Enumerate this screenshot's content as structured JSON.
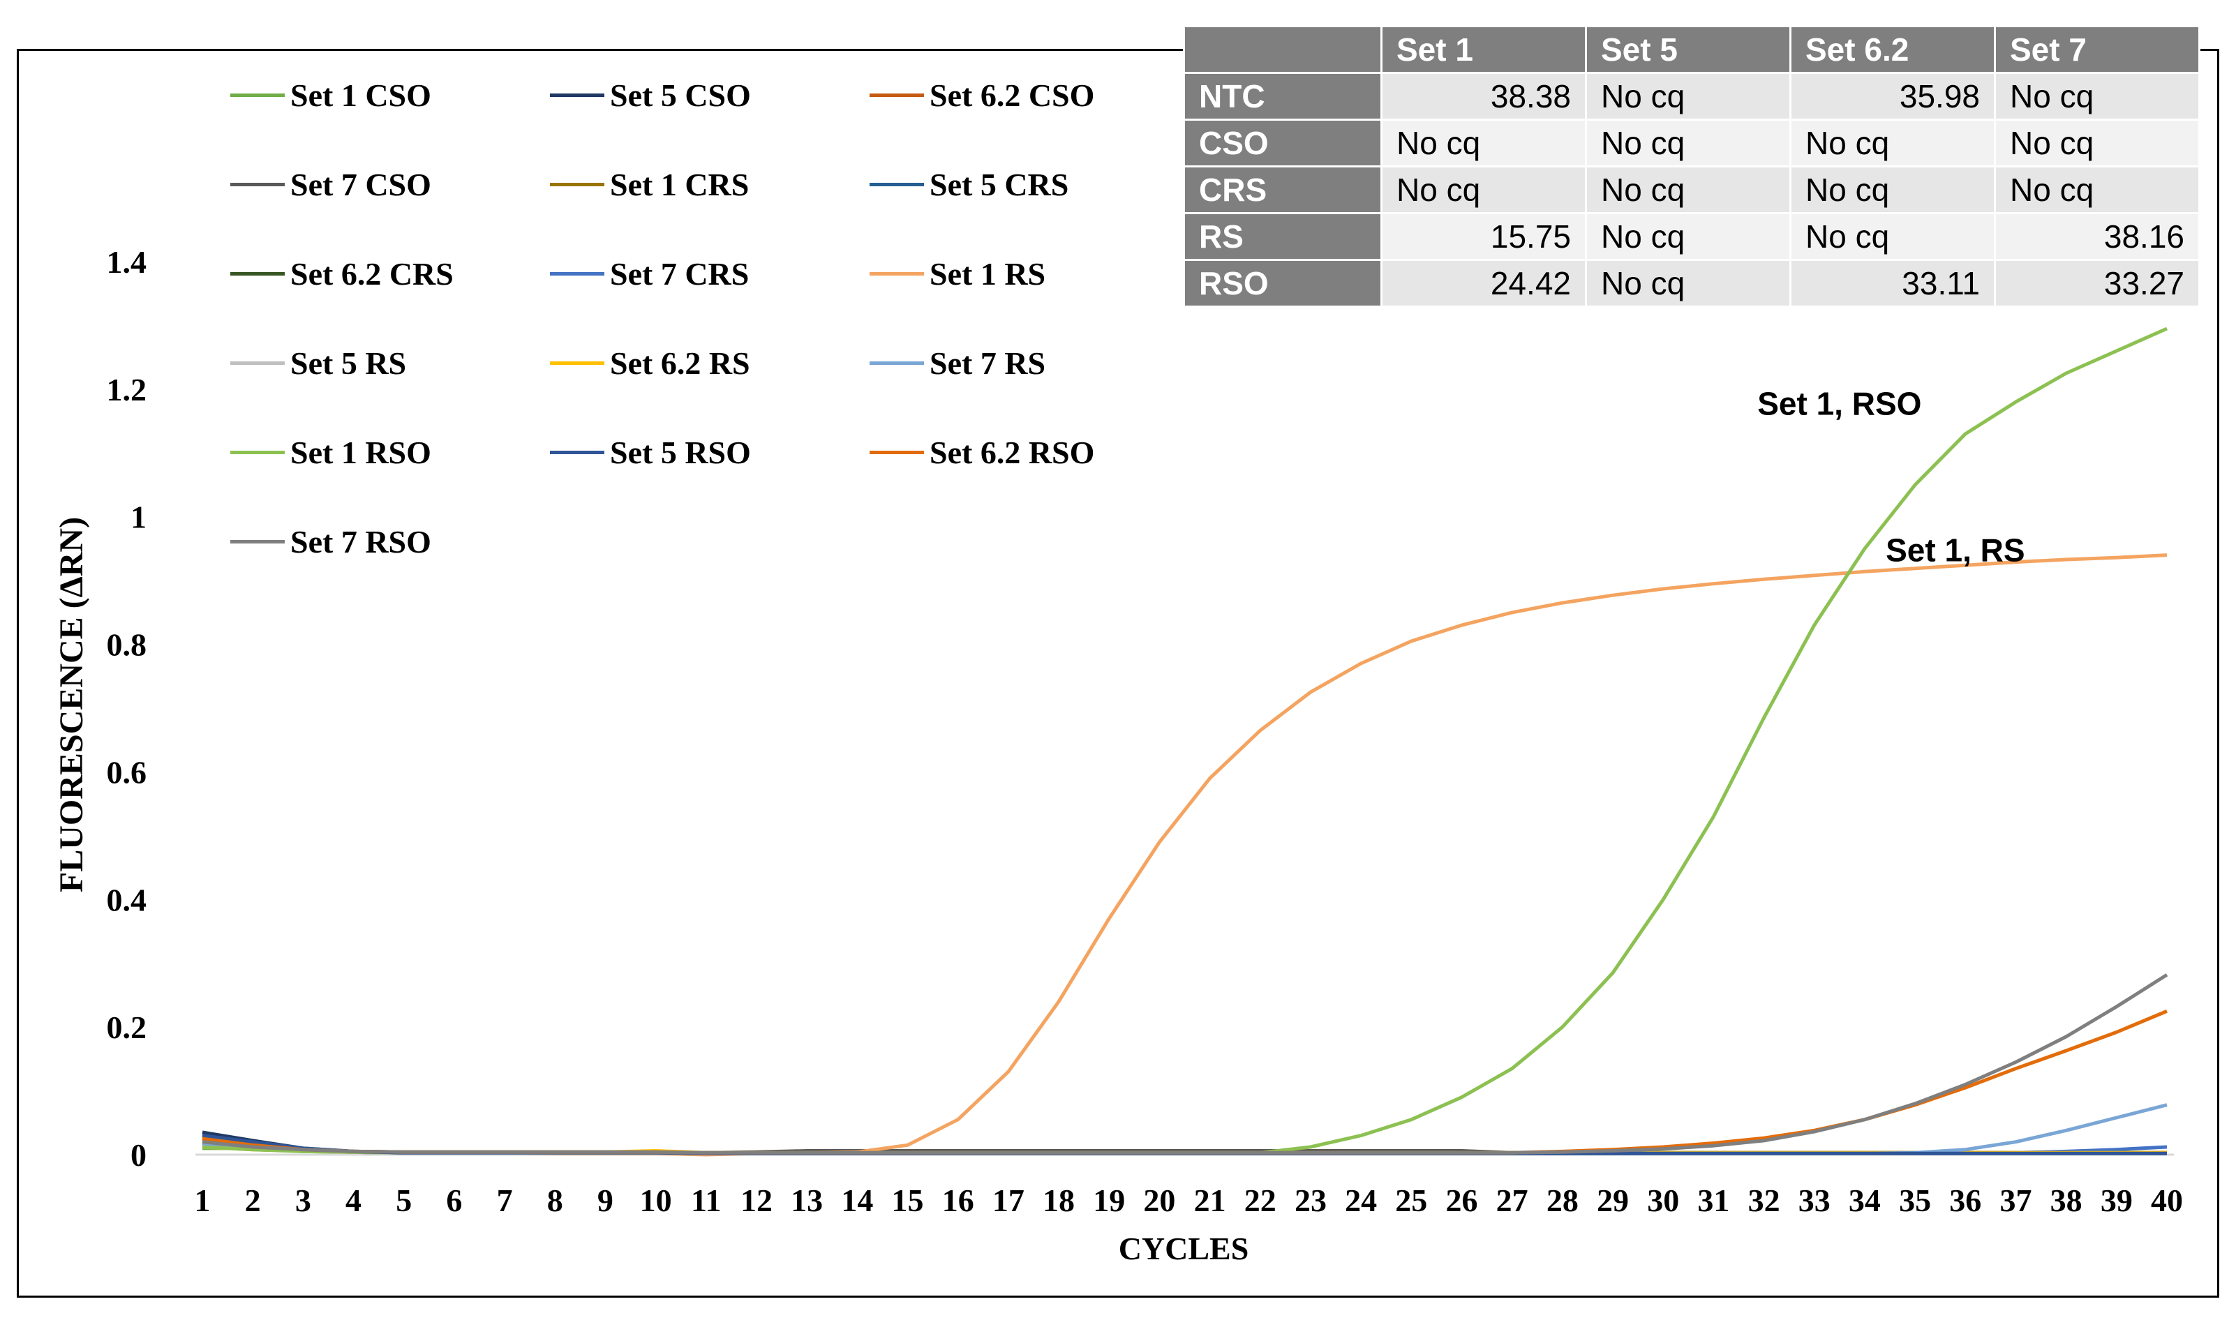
{
  "chart_data": {
    "type": "line",
    "xlabel": "CYCLES",
    "ylabel": "FLUORESCENCE (ΔRN)",
    "ylim": [
      0,
      1.4
    ],
    "yticks": [
      0,
      0.2,
      0.4,
      0.6,
      0.8,
      1,
      1.2,
      1.4
    ],
    "ytick_labels": [
      "0",
      "0.2",
      "0.4",
      "0.6",
      "0.8",
      "1",
      "1.2",
      "1.4"
    ],
    "x": [
      1,
      2,
      3,
      4,
      5,
      6,
      7,
      8,
      9,
      10,
      11,
      12,
      13,
      14,
      15,
      16,
      17,
      18,
      19,
      20,
      21,
      22,
      23,
      24,
      25,
      26,
      27,
      28,
      29,
      30,
      31,
      32,
      33,
      34,
      35,
      36,
      37,
      38,
      39,
      40
    ],
    "legend_position": "top-left",
    "series": [
      {
        "name": "Set 1 CSO",
        "color": "#70ad47",
        "values": [
          0.01,
          0.01,
          0.005,
          0.004,
          0.003,
          0.003,
          0.003,
          0.003,
          0.003,
          0.003,
          0.003,
          0.003,
          0.003,
          0.003,
          0.003,
          0.003,
          0.003,
          0.003,
          0.003,
          0.003,
          0.003,
          0.003,
          0.003,
          0.003,
          0.003,
          0.003,
          0.003,
          0.003,
          0.003,
          0.003,
          0.003,
          0.003,
          0.003,
          0.003,
          0.003,
          0.003,
          0.003,
          0.003,
          0.003,
          0.003
        ]
      },
      {
        "name": "Set 5 CSO",
        "color": "#203864",
        "values": [
          0.035,
          0.022,
          0.01,
          0.005,
          0.003,
          0.003,
          0.003,
          0.003,
          0.003,
          0.003,
          0.002,
          0.002,
          0.002,
          0.002,
          0.002,
          0.002,
          0.002,
          0.002,
          0.002,
          0.002,
          0.002,
          0.002,
          0.002,
          0.002,
          0.002,
          0.002,
          0.002,
          0.002,
          0.002,
          0.002,
          0.002,
          0.002,
          0.002,
          0.002,
          0.002,
          0.002,
          0.002,
          0.002,
          0.002,
          0.002
        ]
      },
      {
        "name": "Set 6.2 CSO",
        "color": "#c55a11",
        "values": [
          0.025,
          0.015,
          0.008,
          0.005,
          0.004,
          0.004,
          0.004,
          0.004,
          0.004,
          0.004,
          0.003,
          0.003,
          0.003,
          0.003,
          0.003,
          0.003,
          0.003,
          0.003,
          0.003,
          0.003,
          0.003,
          0.003,
          0.003,
          0.003,
          0.003,
          0.003,
          0.003,
          0.003,
          0.003,
          0.003,
          0.003,
          0.003,
          0.003,
          0.003,
          0.003,
          0.003,
          0.003,
          0.003,
          0.003,
          0.003
        ]
      },
      {
        "name": "Set 7 CSO",
        "color": "#595959",
        "values": [
          0.02,
          0.012,
          0.008,
          0.005,
          0.004,
          0.004,
          0.004,
          0.004,
          0.004,
          0.004,
          0.003,
          0.004,
          0.006,
          0.006,
          0.006,
          0.006,
          0.006,
          0.006,
          0.006,
          0.006,
          0.006,
          0.006,
          0.006,
          0.006,
          0.006,
          0.006,
          0.003,
          0.003,
          0.003,
          0.003,
          0.003,
          0.003,
          0.003,
          0.003,
          0.003,
          0.003,
          0.003,
          0.003,
          0.003,
          0.003
        ]
      },
      {
        "name": "Set 1 CRS",
        "color": "#997300",
        "values": [
          0.02,
          0.012,
          0.006,
          0.004,
          0.003,
          0.003,
          0.003,
          0.003,
          0.003,
          0.003,
          0.003,
          0.003,
          0.003,
          0.003,
          0.003,
          0.003,
          0.003,
          0.003,
          0.003,
          0.003,
          0.003,
          0.003,
          0.003,
          0.003,
          0.003,
          0.003,
          0.003,
          0.003,
          0.003,
          0.003,
          0.003,
          0.003,
          0.003,
          0.003,
          0.003,
          0.003,
          0.003,
          0.003,
          0.003,
          0.003
        ]
      },
      {
        "name": "Set 5 CRS",
        "color": "#255e91",
        "values": [
          0.03,
          0.018,
          0.009,
          0.005,
          0.003,
          0.003,
          0.003,
          0.003,
          0.003,
          0.003,
          0.002,
          0.002,
          0.002,
          0.002,
          0.002,
          0.002,
          0.002,
          0.002,
          0.002,
          0.002,
          0.002,
          0.002,
          0.002,
          0.002,
          0.002,
          0.002,
          0.002,
          0.002,
          0.002,
          0.002,
          0.002,
          0.002,
          0.002,
          0.002,
          0.002,
          0.002,
          0.002,
          0.002,
          0.002,
          0.002
        ]
      },
      {
        "name": "Set 6.2 CRS",
        "color": "#375623",
        "values": [
          0.015,
          0.01,
          0.006,
          0.004,
          0.003,
          0.003,
          0.003,
          0.003,
          0.003,
          0.003,
          0.003,
          0.003,
          0.003,
          0.003,
          0.003,
          0.003,
          0.003,
          0.003,
          0.003,
          0.003,
          0.003,
          0.003,
          0.003,
          0.003,
          0.003,
          0.003,
          0.003,
          0.003,
          0.003,
          0.003,
          0.003,
          0.003,
          0.003,
          0.003,
          0.003,
          0.003,
          0.003,
          0.003,
          0.003,
          0.003
        ]
      },
      {
        "name": "Set 7 CRS",
        "color": "#4472c4",
        "values": [
          0.018,
          0.011,
          0.006,
          0.004,
          0.003,
          0.003,
          0.003,
          0.003,
          0.003,
          0.003,
          0.002,
          0.002,
          0.002,
          0.002,
          0.002,
          0.002,
          0.002,
          0.002,
          0.002,
          0.002,
          0.002,
          0.002,
          0.002,
          0.002,
          0.002,
          0.002,
          0.002,
          0.002,
          0.002,
          0.002,
          0.002,
          0.002,
          0.002,
          0.002,
          0.002,
          0.002,
          0.003,
          0.005,
          0.008,
          0.012
        ]
      },
      {
        "name": "Set 1 RS",
        "color": "#f4a460",
        "values": [
          0.02,
          0.012,
          0.006,
          0.004,
          0.003,
          0.003,
          0.003,
          0.002,
          0.002,
          0.002,
          0,
          0.002,
          0.003,
          0.004,
          0.015,
          0.055,
          0.13,
          0.24,
          0.37,
          0.49,
          0.59,
          0.665,
          0.725,
          0.77,
          0.805,
          0.83,
          0.85,
          0.865,
          0.877,
          0.887,
          0.895,
          0.902,
          0.908,
          0.914,
          0.919,
          0.924,
          0.929,
          0.933,
          0.936,
          0.94
        ]
      },
      {
        "name": "Set 5 RS",
        "color": "#bfbfbf",
        "values": [
          0.015,
          0.01,
          0.006,
          0.004,
          0.003,
          0.003,
          0.003,
          0.003,
          0.003,
          0.003,
          0.002,
          0.002,
          0.002,
          0.002,
          0.002,
          0.002,
          0.002,
          0.002,
          0.002,
          0.002,
          0.002,
          0.002,
          0.002,
          0.002,
          0.002,
          0.002,
          0.002,
          0.002,
          0.002,
          0.002,
          0.002,
          0.002,
          0.002,
          0.002,
          0.002,
          0.002,
          0.002,
          0.002,
          0.002,
          0.002
        ]
      },
      {
        "name": "Set 6.2 RS",
        "color": "#ffc000",
        "values": [
          0.012,
          0.008,
          0.006,
          0.004,
          0.004,
          0.004,
          0.004,
          0.004,
          0.004,
          0.006,
          0.003,
          0.003,
          0.003,
          0.003,
          0.003,
          0.003,
          0.003,
          0.003,
          0.003,
          0.003,
          0.003,
          0.003,
          0.003,
          0.003,
          0.003,
          0.003,
          0.003,
          0.003,
          0.003,
          0.003,
          0.003,
          0.003,
          0.003,
          0.003,
          0.003,
          0.003,
          0.003,
          0.003,
          0.003,
          0.003
        ]
      },
      {
        "name": "Set 7 RS",
        "color": "#7aa6d6",
        "values": [
          0.015,
          0.01,
          0.006,
          0.004,
          0.003,
          0.003,
          0.003,
          0.003,
          0.003,
          0.003,
          0.002,
          0.002,
          0.002,
          0.002,
          0.002,
          0.002,
          0.002,
          0.002,
          0.002,
          0.002,
          0.002,
          0.002,
          0.002,
          0.002,
          0.002,
          0.002,
          0.002,
          0.002,
          0.002,
          0.002,
          0.002,
          0.002,
          0.002,
          0.002,
          0.003,
          0.008,
          0.02,
          0.038,
          0.058,
          0.078
        ]
      },
      {
        "name": "Set 1 RSO",
        "color": "#8cc152",
        "values": [
          0.012,
          0.008,
          0.005,
          0.004,
          0.003,
          0.003,
          0.003,
          0.003,
          0.003,
          0.003,
          0.003,
          0.003,
          0.003,
          0.003,
          0.003,
          0.003,
          0.003,
          0.003,
          0.003,
          0.003,
          0.003,
          0.003,
          0.012,
          0.03,
          0.055,
          0.09,
          0.135,
          0.2,
          0.285,
          0.4,
          0.53,
          0.685,
          0.83,
          0.95,
          1.05,
          1.13,
          1.18,
          1.225,
          1.26,
          1.295
        ]
      },
      {
        "name": "Set 5 RSO",
        "color": "#2f5597",
        "values": [
          0.03,
          0.02,
          0.01,
          0.005,
          0.003,
          0.003,
          0.003,
          0.003,
          0.003,
          0.003,
          0.002,
          0.002,
          0.002,
          0.002,
          0.002,
          0.002,
          0.002,
          0.002,
          0.002,
          0.002,
          0.002,
          0.002,
          0.002,
          0.002,
          0.002,
          0.002,
          0.002,
          0.002,
          0.002,
          0.002,
          0.002,
          0.002,
          0.002,
          0.002,
          0.002,
          0.002,
          0.002,
          0.002,
          0.002,
          0.002
        ]
      },
      {
        "name": "Set 6.2 RSO",
        "color": "#e36c0a",
        "values": [
          0.025,
          0.015,
          0.008,
          0.005,
          0.004,
          0.004,
          0.004,
          0.004,
          0.004,
          0.004,
          0.003,
          0.003,
          0.003,
          0.003,
          0.003,
          0.003,
          0.003,
          0.003,
          0.003,
          0.003,
          0.003,
          0.003,
          0.003,
          0.003,
          0.003,
          0.003,
          0.003,
          0.005,
          0.008,
          0.012,
          0.018,
          0.026,
          0.038,
          0.055,
          0.078,
          0.105,
          0.135,
          0.163,
          0.192,
          0.225
        ]
      },
      {
        "name": "Set 7 RSO",
        "color": "#7f7f7f",
        "values": [
          0.02,
          0.012,
          0.008,
          0.005,
          0.004,
          0.004,
          0.004,
          0.004,
          0.004,
          0.004,
          0.003,
          0.003,
          0.003,
          0.003,
          0.003,
          0.003,
          0.003,
          0.003,
          0.003,
          0.003,
          0.003,
          0.003,
          0.003,
          0.003,
          0.003,
          0.003,
          0.003,
          0.004,
          0.006,
          0.009,
          0.014,
          0.022,
          0.036,
          0.055,
          0.08,
          0.11,
          0.145,
          0.185,
          0.232,
          0.282
        ]
      }
    ],
    "annotations": [
      {
        "text": "Set 1, RSO",
        "x": 33.5,
        "y": 1.16
      },
      {
        "text": "Set 1, RS",
        "x": 35.8,
        "y": 0.93
      }
    ]
  },
  "table": {
    "headers": [
      "",
      "Set 1",
      "Set 5",
      "Set 6.2",
      "Set 7"
    ],
    "rows": [
      {
        "label": "NTC",
        "cells": [
          "38.38",
          "No cq",
          "35.98",
          "No cq"
        ]
      },
      {
        "label": "CSO",
        "cells": [
          "No cq",
          "No cq",
          "No cq",
          "No cq"
        ]
      },
      {
        "label": "CRS",
        "cells": [
          "No cq",
          "No cq",
          "No cq",
          "No cq"
        ]
      },
      {
        "label": "RS",
        "cells": [
          "15.75",
          "No cq",
          "No cq",
          "38.16"
        ]
      },
      {
        "label": "RSO",
        "cells": [
          "24.42",
          "No cq",
          "33.11",
          "33.27"
        ]
      }
    ]
  }
}
